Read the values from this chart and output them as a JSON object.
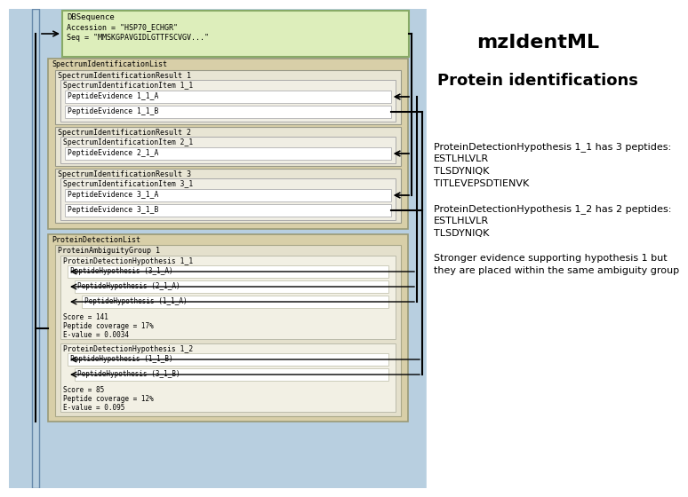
{
  "title": "mzIdentML",
  "subtitle": "Protein identifications",
  "bg_outer": "#b8cfe0",
  "bg_white": "#ffffff",
  "dbseq_bg": "#ddeebb",
  "dbseq_border": "#88aa66",
  "dbseq_title": "DBSequence",
  "dbseq_line1": "Accession = \"HSP70_ECHGR\"",
  "dbseq_line2": "Seq = \"MMSKGPAVGIDLGTTFSCVGV...\"",
  "speclist_bg": "#d8cfa8",
  "speclist_border": "#999977",
  "speclist_title": "SpectrumIdentificationList",
  "spec_results": [
    {
      "title": "SpectrumIdentificationResult 1",
      "item": "SpectrumIdentificationItem 1_1",
      "peptides": [
        "PeptideEvidence 1_1_A",
        "PeptideEvidence 1_1_B"
      ]
    },
    {
      "title": "SpectrumIdentificationResult 2",
      "item": "SpectrumIdentificationItem 2_1",
      "peptides": [
        "PeptideEvidence 2_1_A"
      ]
    },
    {
      "title": "SpectrumIdentificationResult 3",
      "item": "SpectrumIdentificationItem 3_1",
      "peptides": [
        "PeptideEvidence 3_1_A",
        "PeptideEvidence 3_1_B"
      ]
    }
  ],
  "protlist_title": "ProteinDetectionList",
  "ambgroup_title": "ProteinAmbiguityGroup 1",
  "hyp1_title": "ProteinDetectionHypothesis 1_1",
  "hyp1_peptides": [
    "PeptideHypothesis (3_1_A)",
    "PeptideHypothesis (2_1_A)",
    "PeptideHypothesis (1_1_A)"
  ],
  "hyp1_stats": [
    "Score = 141",
    "Peptide coverage = 17%",
    "E-value = 0.0034"
  ],
  "hyp2_title": "ProteinDetectionHypothesis 1_2",
  "hyp2_peptides": [
    "PeptideHypothesis (1_1_B)",
    "PeptideHypothesis (3_1_B)"
  ],
  "hyp2_stats": [
    "Score = 85",
    "Peptide coverage = 12%",
    "E-value = 0.095"
  ],
  "right_lines": [
    [
      "ProteinDetectionHypothesis 1_1 has 3 peptides:",
      false
    ],
    [
      "ESTLHLVLR",
      false
    ],
    [
      "TLSDYNIQK",
      false
    ],
    [
      "TITLEVEPSDTIENVK",
      false
    ],
    [
      "",
      false
    ],
    [
      "ProteinDetectionHypothesis 1_2 has 2 peptides:",
      false
    ],
    [
      "ESTLHLVLR",
      false
    ],
    [
      "TLSDYNIQK",
      false
    ],
    [
      "",
      false
    ],
    [
      "Stronger evidence supporting hypothesis 1 but",
      false
    ],
    [
      "they are placed within the same ambiguity group",
      false
    ]
  ]
}
